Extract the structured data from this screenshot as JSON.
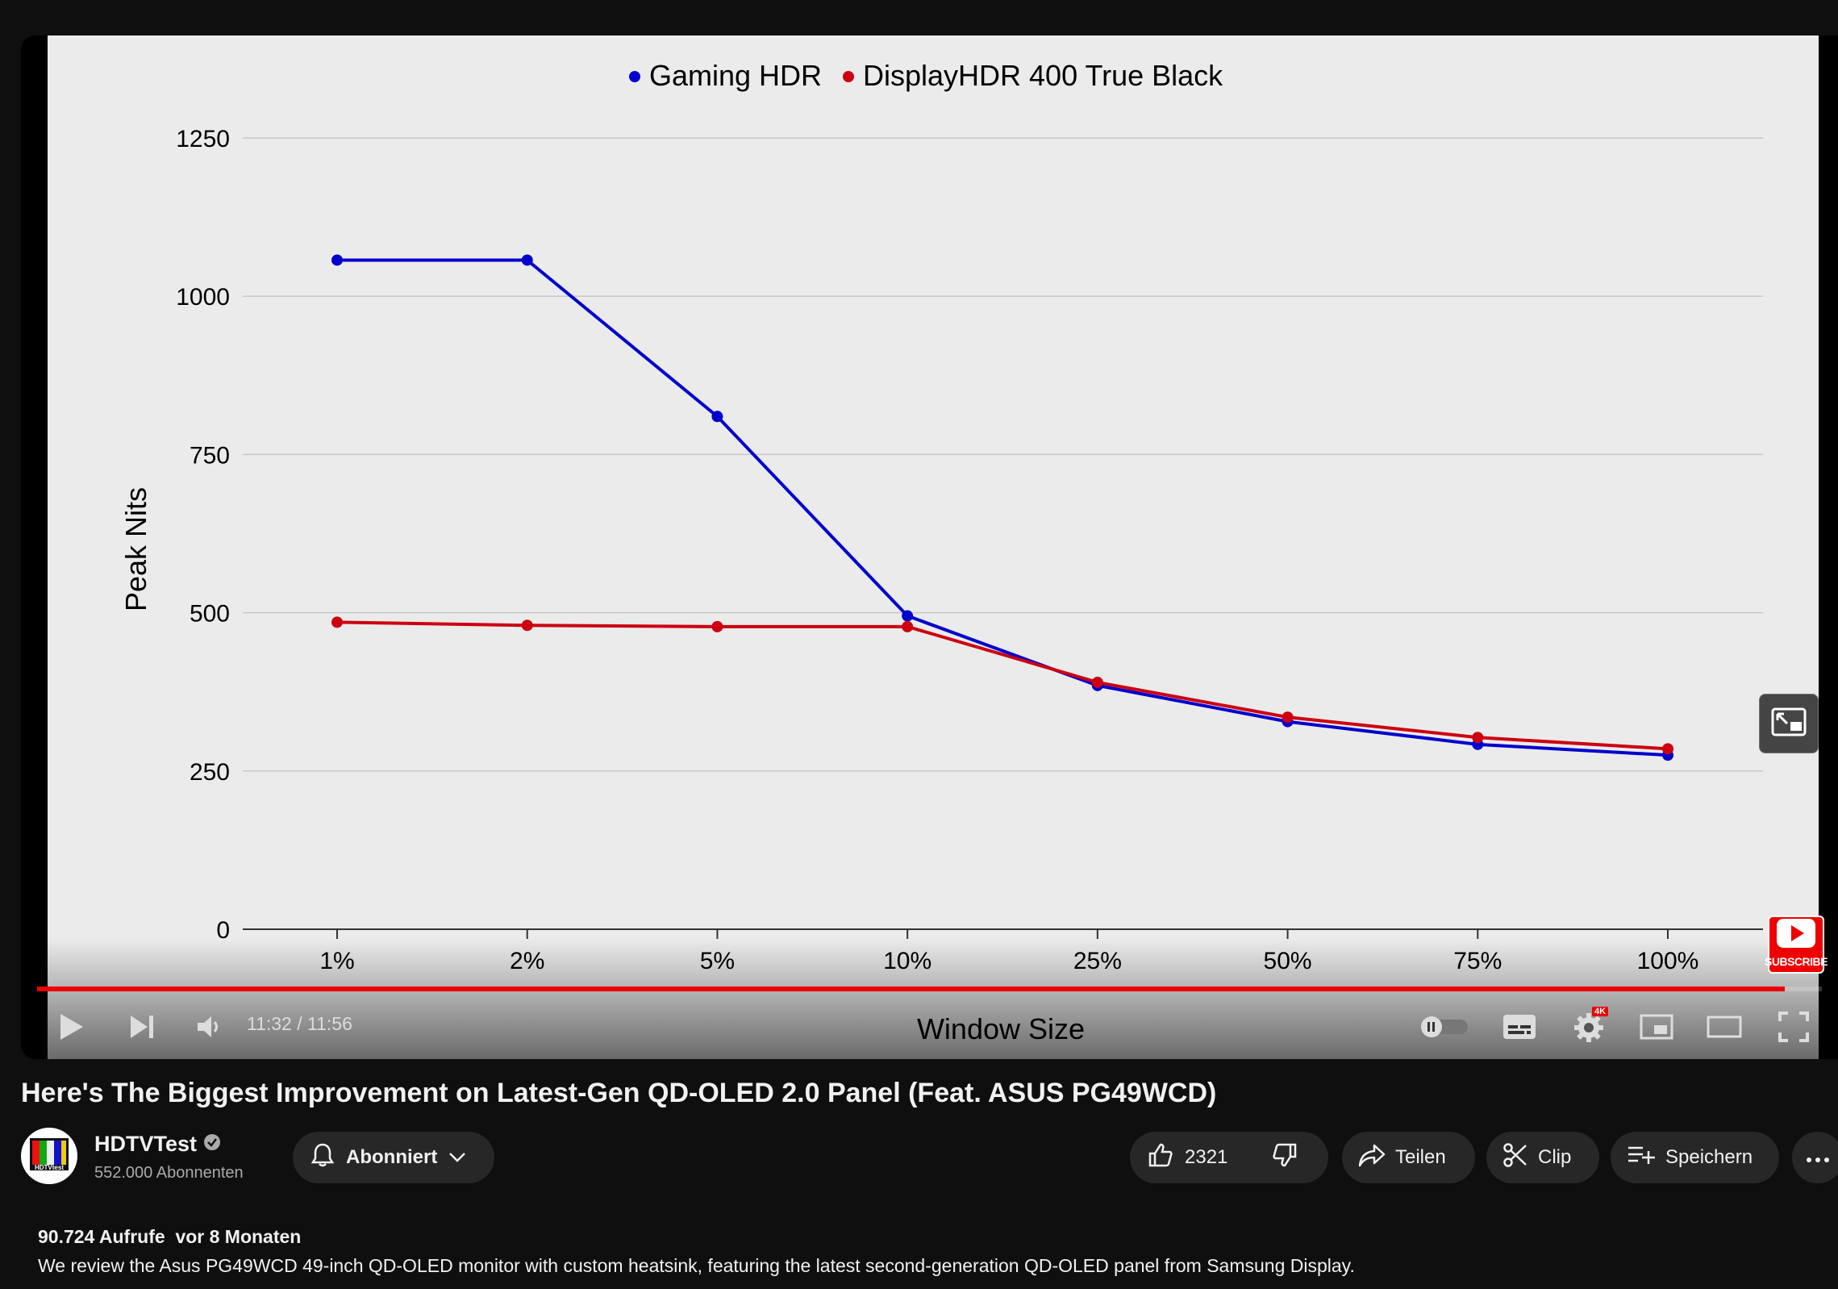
{
  "chart_data": {
    "type": "line",
    "categories": [
      "1%",
      "2%",
      "5%",
      "10%",
      "25%",
      "50%",
      "75%",
      "100%"
    ],
    "series": [
      {
        "name": "Gaming HDR",
        "color": "#0000cc",
        "values": [
          1057,
          1057,
          810,
          495,
          385,
          328,
          292,
          275
        ]
      },
      {
        "name": "DisplayHDR 400 True Black",
        "color": "#cc0011",
        "values": [
          485,
          480,
          478,
          478,
          390,
          335,
          303,
          285
        ]
      }
    ],
    "xlabel": "Window Size",
    "ylabel": "Peak Nits",
    "ylim": [
      0,
      1250
    ],
    "yticks": [
      0,
      250,
      500,
      750,
      1000,
      1250
    ],
    "grid": true,
    "legend": "top-center"
  },
  "player": {
    "time": "11:32 / 11:56",
    "progress_fraction": 0.979,
    "subscribe_badge": "SUBSCRIBE",
    "quality_badge": "4K",
    "icons": [
      "play-icon",
      "next-icon",
      "volume-icon",
      "autoplay-toggle-icon",
      "subtitles-icon",
      "settings-icon",
      "miniplayer-icon",
      "theater-icon",
      "fullscreen-icon",
      "overlay-expand-icon"
    ]
  },
  "video": {
    "title": "Here's The Biggest Improvement on Latest-Gen QD-OLED 2.0 Panel (Feat. ASUS PG49WCD)",
    "channel": "HDTVTest",
    "avatar_text": "HDTVtest",
    "subscribers": "552.000 Abonnenten",
    "subscribe_state": "Abonniert",
    "likes": "2321",
    "share": "Teilen",
    "clip": "Clip",
    "save": "Speichern",
    "views": "90.724 Aufrufe",
    "age": "vor 8 Monaten",
    "description": "We review the Asus PG49WCD 49-inch QD-OLED monitor with custom heatsink, featuring the latest second-generation QD-OLED panel from Samsung Display."
  }
}
